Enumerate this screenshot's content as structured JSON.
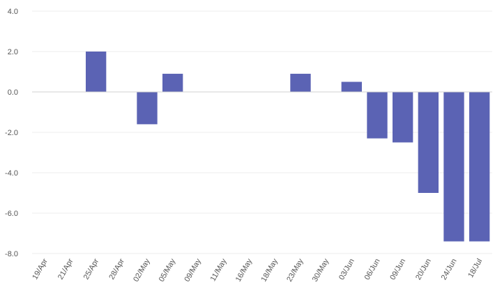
{
  "chart_data": {
    "type": "bar",
    "title": "",
    "xlabel": "",
    "ylabel": "",
    "ylim": [
      -8.0,
      4.0
    ],
    "yticks": [
      4.0,
      2.0,
      0.0,
      -2.0,
      -4.0,
      -6.0,
      -8.0
    ],
    "ytick_labels": [
      "4.0",
      "2.0",
      "0.0",
      "-2.0",
      "-4.0",
      "-6.0",
      "-8.0"
    ],
    "grid": true,
    "bar_color": "#5b63b4",
    "categories": [
      "19/Apr",
      "21/Apr",
      "25/Apr",
      "28/Apr",
      "02/May",
      "05/May",
      "09/May",
      "11/May",
      "16/May",
      "18/May",
      "23/May",
      "30/May",
      "03/Jun",
      "06/Jun",
      "09/Jun",
      "20/Jun",
      "24/Jun",
      "18/Jul"
    ],
    "values": [
      0.0,
      0.0,
      2.0,
      0.0,
      -1.6,
      0.9,
      0.0,
      0.0,
      0.0,
      0.0,
      0.9,
      0.0,
      0.5,
      -2.3,
      -2.5,
      -5.0,
      -7.4,
      -7.4
    ]
  }
}
